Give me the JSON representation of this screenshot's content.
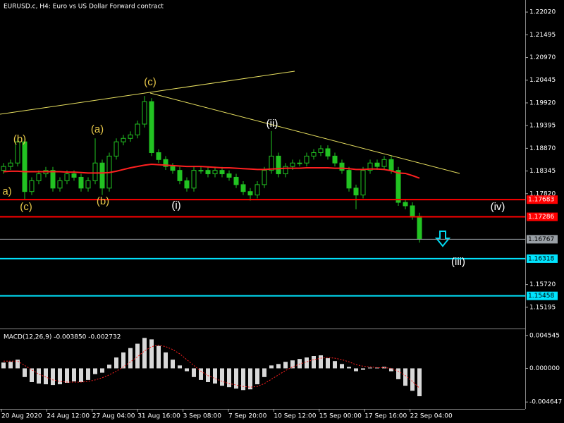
{
  "chart_data": {
    "type": "candlestick",
    "title": "EURUSD.c, H4:  Euro vs US Dollar Forward contract",
    "color": "#22c322",
    "ylim": [
      1.14703,
      1.22299
    ],
    "yticks": [
      {
        "value": 1.2202,
        "label": "1.22020"
      },
      {
        "value": 1.21495,
        "label": "1.21495"
      },
      {
        "value": 1.2097,
        "label": "1.20970"
      },
      {
        "value": 1.20445,
        "label": "1.20445"
      },
      {
        "value": 1.1992,
        "label": "1.19920"
      },
      {
        "value": 1.19395,
        "label": "1.19395"
      },
      {
        "value": 1.1887,
        "label": "1.18870"
      },
      {
        "value": 1.18345,
        "label": "1.18345"
      },
      {
        "value": 1.1782,
        "label": "1.17820"
      },
      {
        "value": 1.1572,
        "label": "1.15720"
      },
      {
        "value": 1.15195,
        "label": "1.15195"
      }
    ],
    "open": [
      1.1836,
      1.1845,
      1.1853,
      1.1902,
      1.1787,
      1.1812,
      1.1828,
      1.1836,
      1.1795,
      1.1812,
      1.1828,
      1.182,
      1.1795,
      1.1812,
      1.1853,
      1.1795,
      1.1869,
      1.1902,
      1.191,
      1.1918,
      1.1943,
      1.1995,
      1.1877,
      1.1861,
      1.1845,
      1.1836,
      1.1812,
      1.1795,
      1.1836,
      1.1836,
      1.1828,
      1.1836,
      1.1828,
      1.182,
      1.1803,
      1.1787,
      1.1779,
      1.1803,
      1.1836,
      1.1869,
      1.1828,
      1.1845,
      1.1853,
      1.1853,
      1.1869,
      1.1877,
      1.1886,
      1.1869,
      1.1853,
      1.1836,
      1.1795,
      1.1779,
      1.1836,
      1.1853,
      1.1845,
      1.1861,
      1.1836,
      1.1762,
      1.1754,
      1.173
    ],
    "high": [
      1.1853,
      1.1861,
      1.191,
      1.191,
      1.182,
      1.1836,
      1.1844,
      1.1844,
      1.182,
      1.1836,
      1.1836,
      1.1828,
      1.182,
      1.191,
      1.1861,
      1.1877,
      1.191,
      1.1918,
      1.1926,
      1.1951,
      1.2008,
      1.2003,
      1.1885,
      1.1869,
      1.1853,
      1.1844,
      1.182,
      1.1844,
      1.1844,
      1.1844,
      1.1844,
      1.1844,
      1.1836,
      1.1828,
      1.1811,
      1.1795,
      1.1811,
      1.1844,
      1.1927,
      1.1877,
      1.1853,
      1.1861,
      1.1861,
      1.1877,
      1.1885,
      1.1894,
      1.1894,
      1.1877,
      1.1861,
      1.1844,
      1.1803,
      1.1844,
      1.1861,
      1.1861,
      1.1869,
      1.1869,
      1.1844,
      1.177,
      1.1762,
      1.1738
    ],
    "low": [
      1.1828,
      1.1837,
      1.1845,
      1.177,
      1.1779,
      1.1804,
      1.182,
      1.1787,
      1.1787,
      1.1804,
      1.1812,
      1.1787,
      1.1787,
      1.1804,
      1.1779,
      1.1787,
      1.1861,
      1.1894,
      1.1902,
      1.191,
      1.1935,
      1.1869,
      1.1853,
      1.1837,
      1.1828,
      1.1804,
      1.1787,
      1.1787,
      1.1828,
      1.182,
      1.182,
      1.182,
      1.1812,
      1.1795,
      1.1779,
      1.1766,
      1.1771,
      1.1795,
      1.1828,
      1.182,
      1.182,
      1.1837,
      1.1845,
      1.1845,
      1.1861,
      1.1869,
      1.1861,
      1.1845,
      1.1828,
      1.1787,
      1.1746,
      1.1771,
      1.1828,
      1.1837,
      1.1837,
      1.1828,
      1.1754,
      1.1746,
      1.1722,
      1.1669
    ],
    "close": [
      1.1845,
      1.1853,
      1.1902,
      1.1787,
      1.1812,
      1.1828,
      1.1836,
      1.1795,
      1.1812,
      1.1828,
      1.182,
      1.1795,
      1.1812,
      1.1853,
      1.1795,
      1.1869,
      1.1902,
      1.191,
      1.1918,
      1.1943,
      1.1995,
      1.1877,
      1.1861,
      1.1845,
      1.1836,
      1.1812,
      1.1795,
      1.1836,
      1.1836,
      1.1828,
      1.1836,
      1.1828,
      1.182,
      1.1803,
      1.1787,
      1.1779,
      1.1803,
      1.1836,
      1.1869,
      1.1828,
      1.1845,
      1.1853,
      1.1853,
      1.1869,
      1.1877,
      1.1886,
      1.1869,
      1.1853,
      1.1836,
      1.1795,
      1.1779,
      1.1836,
      1.1853,
      1.1845,
      1.1861,
      1.1836,
      1.1762,
      1.1754,
      1.173,
      1.1677
    ],
    "ma": {
      "color": "#ff2020",
      "values": [
        1.1833,
        1.1834,
        1.1834,
        1.1833,
        1.1833,
        1.1833,
        1.1833,
        1.1833,
        1.1833,
        1.1832,
        1.1832,
        1.1831,
        1.183,
        1.183,
        1.183,
        1.1831,
        1.1834,
        1.1838,
        1.1842,
        1.1845,
        1.1848,
        1.185,
        1.1849,
        1.1848,
        1.1847,
        1.1846,
        1.1845,
        1.1845,
        1.1845,
        1.1844,
        1.1843,
        1.1842,
        1.1842,
        1.1841,
        1.184,
        1.1839,
        1.1838,
        1.1838,
        1.1839,
        1.184,
        1.1841,
        1.1841,
        1.1841,
        1.1842,
        1.1842,
        1.1842,
        1.1842,
        1.1841,
        1.1841,
        1.184,
        1.1838,
        1.1838,
        1.1839,
        1.1839,
        1.1838,
        1.1835,
        1.183,
        1.1829,
        1.1824,
        1.1818
      ]
    },
    "levels": [
      {
        "value": 1.17683,
        "color": "#ff0000"
      },
      {
        "value": 1.17286,
        "color": "#ff0000"
      },
      {
        "value": 1.16767,
        "color": "#9aa0a6"
      },
      {
        "value": 1.16318,
        "color": "#00e5ff"
      },
      {
        "value": 1.15458,
        "color": "#00e5ff"
      }
    ],
    "annotations": [
      {
        "text": "(b)",
        "color": "#e8c84a"
      },
      {
        "text": "a)",
        "color": "#e8c84a"
      },
      {
        "text": "(c)",
        "color": "#e8c84a"
      },
      {
        "text": "(a)",
        "color": "#e8c84a"
      },
      {
        "text": "(b)",
        "color": "#e8c84a"
      },
      {
        "text": "(c)",
        "color": "#e8c84a"
      },
      {
        "text": "(i)",
        "color": "#ffffff"
      },
      {
        "text": "(ii)",
        "color": "#ffffff"
      },
      {
        "text": "(iv)",
        "color": "#ffffff"
      },
      {
        "text": "(iii)",
        "color": "#ffffff"
      }
    ],
    "x_labels": [
      "20 Aug 2020",
      "24 Aug 12:00",
      "27 Aug 04:00",
      "31 Aug 16:00",
      "3 Sep 08:00",
      "7 Sep 20:00",
      "10 Sep 12:00",
      "15 Sep 00:00",
      "17 Sep 16:00",
      "22 Sep 04:00"
    ],
    "macd": {
      "title": "MACD(12,26,9) -0.003850 -0.002732",
      "ylim": [
        -0.0056,
        0.0054
      ],
      "yticks": [
        {
          "value": 0.004545,
          "label": "0.004545"
        },
        {
          "value": 0,
          "label": "0.000000"
        },
        {
          "value": -0.004647,
          "label": "-0.004647"
        }
      ],
      "hist_color": "#d8d8d8",
      "signal_color": "#ff2020",
      "histogram": [
        0.0008,
        0.0009,
        0.0012,
        -0.0012,
        -0.0019,
        -0.0021,
        -0.0022,
        -0.0023,
        -0.0022,
        -0.002,
        -0.0018,
        -0.0019,
        -0.0016,
        -0.0008,
        -0.0006,
        0.0005,
        0.0015,
        0.0022,
        0.0028,
        0.0034,
        0.0042,
        0.004,
        0.0031,
        0.0022,
        0.0012,
        0.0004,
        -0.0004,
        -0.0012,
        -0.0016,
        -0.0019,
        -0.0021,
        -0.0024,
        -0.0026,
        -0.0028,
        -0.003,
        -0.0029,
        -0.0022,
        -0.0012,
        0.0004,
        0.0006,
        0.0009,
        0.0011,
        0.0013,
        0.0015,
        0.0017,
        0.0018,
        0.0014,
        0.001,
        0.0006,
        0.0002,
        -0.0004,
        -0.0002,
        0.0001,
        0.0001,
        0.0002,
        -0.0004,
        -0.0015,
        -0.0024,
        -0.0031,
        -0.00385
      ],
      "signal": [
        0.001,
        0.001,
        0.001,
        0.0004,
        -0.0002,
        -0.0008,
        -0.0012,
        -0.0016,
        -0.0018,
        -0.0019,
        -0.0019,
        -0.0019,
        -0.0018,
        -0.0016,
        -0.0013,
        -0.0009,
        -0.0004,
        0.0002,
        0.0009,
        0.0016,
        0.0024,
        0.003,
        0.0032,
        0.003,
        0.0026,
        0.002,
        0.0012,
        0.0004,
        -0.0004,
        -0.001,
        -0.0014,
        -0.0018,
        -0.0021,
        -0.0023,
        -0.0025,
        -0.0026,
        -0.0025,
        -0.0021,
        -0.0015,
        -0.0009,
        -0.0003,
        0.0002,
        0.0006,
        0.0009,
        0.0012,
        0.0014,
        0.0015,
        0.0014,
        0.0012,
        0.0009,
        0.0005,
        0.0003,
        0.0002,
        0.0001,
        0.0001,
        0.0,
        -0.0004,
        -0.001,
        -0.0018,
        -0.002732
      ]
    }
  }
}
